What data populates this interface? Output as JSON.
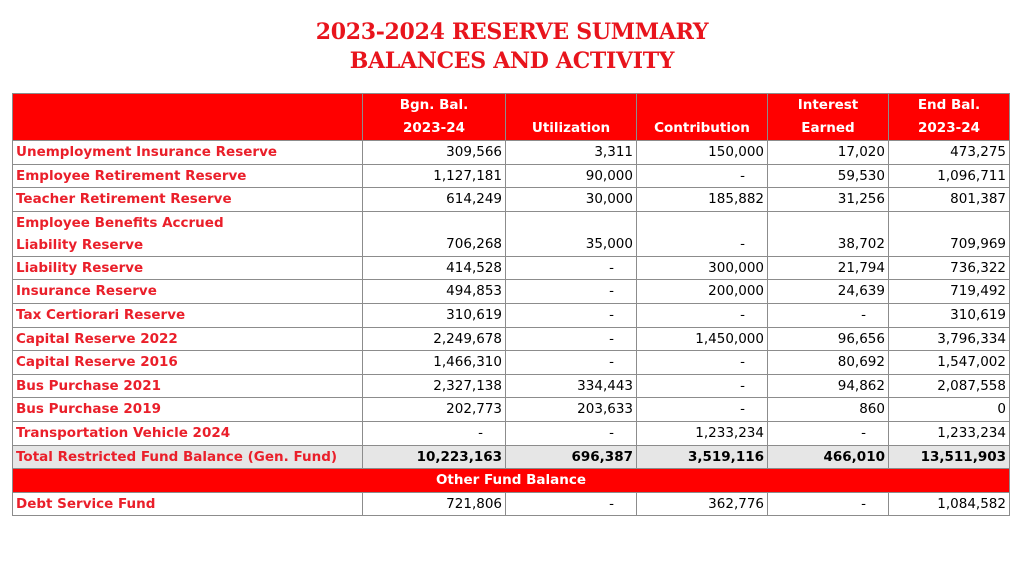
{
  "title": {
    "line1": "2023-2024 RESERVE SUMMARY",
    "line2": "BALANCES AND ACTIVITY"
  },
  "headers": [
    {
      "line1": "Bgn. Bal.",
      "line2": "2023-24"
    },
    {
      "line1": "",
      "line2": "Utilization"
    },
    {
      "line1": "",
      "line2": "Contribution"
    },
    {
      "line1": "Interest",
      "line2": "Earned"
    },
    {
      "line1": "End Bal.",
      "line2": "2023-24"
    }
  ],
  "rows": [
    {
      "label": "Unemployment Insurance Reserve",
      "values": [
        "309,566",
        "3,311",
        "150,000",
        "17,020",
        "473,275"
      ]
    },
    {
      "label": "Employee Retirement Reserve",
      "values": [
        "1,127,181",
        "90,000",
        "-",
        "59,530",
        "1,096,711"
      ]
    },
    {
      "label": "Teacher Retirement Reserve",
      "values": [
        "614,249",
        "30,000",
        "185,882",
        "31,256",
        "801,387"
      ]
    },
    {
      "label_line1": "Employee Benefits Accrued",
      "label_line2": "Liability Reserve",
      "values": [
        "706,268",
        "35,000",
        "-",
        "38,702",
        "709,969"
      ]
    },
    {
      "label": "Liability Reserve",
      "values": [
        "414,528",
        "-",
        "300,000",
        "21,794",
        "736,322"
      ]
    },
    {
      "label": "Insurance Reserve",
      "values": [
        "494,853",
        "-",
        "200,000",
        "24,639",
        "719,492"
      ]
    },
    {
      "label": "Tax Certiorari Reserve",
      "values": [
        "310,619",
        "-",
        "-",
        "-",
        "310,619"
      ]
    },
    {
      "label": "Capital Reserve 2022",
      "values": [
        "2,249,678",
        "-",
        "1,450,000",
        "96,656",
        "3,796,334"
      ]
    },
    {
      "label": "Capital Reserve 2016",
      "values": [
        "1,466,310",
        "-",
        "-",
        "80,692",
        "1,547,002"
      ]
    },
    {
      "label": "Bus Purchase 2021",
      "values": [
        "2,327,138",
        "334,443",
        "-",
        "94,862",
        "2,087,558"
      ]
    },
    {
      "label": "Bus Purchase 2019",
      "values": [
        "202,773",
        "203,633",
        "-",
        "860",
        "0"
      ]
    },
    {
      "label": "Transportation Vehicle 2024",
      "values": [
        "-",
        "-",
        "1,233,234",
        "-",
        "1,233,234"
      ]
    }
  ],
  "total": {
    "label": "Total Restricted Fund Balance (Gen. Fund)",
    "values": [
      "10,223,163",
      "696,387",
      "3,519,116",
      "466,010",
      "13,511,903"
    ]
  },
  "section": "Other Fund Balance",
  "other": {
    "label": "Debt Service Fund",
    "values": [
      "721,806",
      "-",
      "362,776",
      "-",
      "1,084,582"
    ]
  }
}
